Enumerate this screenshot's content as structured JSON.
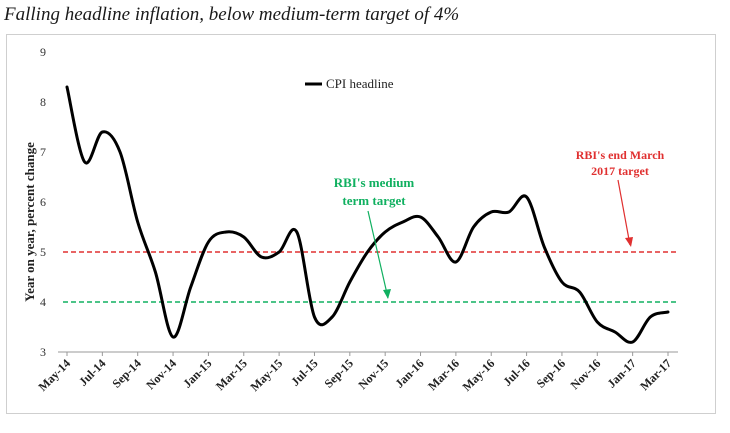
{
  "title": "Falling headline inflation, below medium-term target of 4%",
  "chart_data": {
    "type": "line",
    "title": "",
    "xlabel": "",
    "ylabel": "Year on year, percent change",
    "ylim": [
      3,
      9
    ],
    "yticks": [
      3,
      4,
      5,
      6,
      7,
      8,
      9
    ],
    "grid": false,
    "legend": {
      "position": "top-center",
      "entries": [
        "CPI headline"
      ]
    },
    "x_tick_labels": [
      "May-14",
      "Jul-14",
      "Sep-14",
      "Nov-14",
      "Jan-15",
      "Mar-15",
      "May-15",
      "Jul-15",
      "Sep-15",
      "Nov-15",
      "Jan-16",
      "Mar-16",
      "May-16",
      "Jul-16",
      "Sep-16",
      "Nov-16",
      "Jan-17",
      "Mar-17"
    ],
    "x": [
      "May-14",
      "Jun-14",
      "Jul-14",
      "Aug-14",
      "Sep-14",
      "Oct-14",
      "Nov-14",
      "Dec-14",
      "Jan-15",
      "Feb-15",
      "Mar-15",
      "Apr-15",
      "May-15",
      "Jun-15",
      "Jul-15",
      "Aug-15",
      "Sep-15",
      "Oct-15",
      "Nov-15",
      "Dec-15",
      "Jan-16",
      "Feb-16",
      "Mar-16",
      "Apr-16",
      "May-16",
      "Jun-16",
      "Jul-16",
      "Aug-16",
      "Sep-16",
      "Oct-16",
      "Nov-16",
      "Dec-16",
      "Jan-17",
      "Feb-17",
      "Mar-17"
    ],
    "series": [
      {
        "name": "CPI headline",
        "color": "#000000",
        "values": [
          8.3,
          6.8,
          7.4,
          7.0,
          5.6,
          4.6,
          3.3,
          4.3,
          5.2,
          5.4,
          5.3,
          4.9,
          5.0,
          5.4,
          3.7,
          3.7,
          4.4,
          5.0,
          5.4,
          5.6,
          5.7,
          5.3,
          4.8,
          5.5,
          5.8,
          5.8,
          6.1,
          5.1,
          4.4,
          4.2,
          3.6,
          3.4,
          3.2,
          3.7,
          3.8
        ]
      }
    ],
    "reference_lines": [
      {
        "label": "RBI's medium term target",
        "value": 4,
        "color": "#10b060",
        "style": "dashed"
      },
      {
        "label": "RBI's end March 2017 target",
        "value": 5,
        "color": "#e03030",
        "style": "dashed"
      }
    ],
    "annotations": {
      "green_line1": "RBI's medium",
      "green_line2": "term target",
      "red_line1": "RBI's end March",
      "red_line2": "2017 target"
    }
  }
}
